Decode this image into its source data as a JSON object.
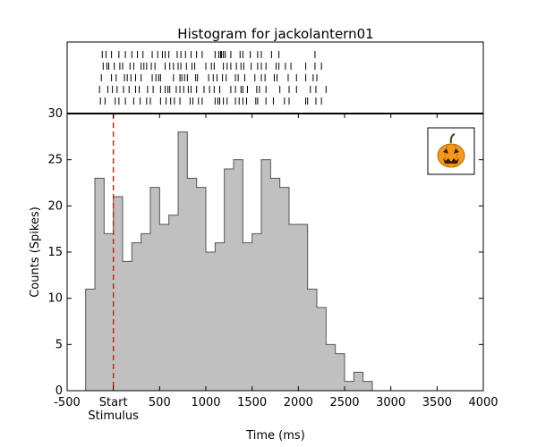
{
  "chart_data": {
    "type": "bar",
    "title": "Histogram for jackolantern01",
    "xlabel": "Time (ms)",
    "ylabel": "Counts (Spikes)",
    "xlim": [
      -500,
      4000
    ],
    "ylim": [
      0,
      30
    ],
    "x_ticks": [
      {
        "value": -500,
        "label": "-500"
      },
      {
        "value": 0,
        "label": "Start"
      },
      {
        "value": 500,
        "label": "500"
      },
      {
        "value": 1000,
        "label": "1000"
      },
      {
        "value": 1500,
        "label": "1500"
      },
      {
        "value": 2000,
        "label": "2000"
      },
      {
        "value": 2500,
        "label": "2500"
      },
      {
        "value": 3000,
        "label": "3000"
      },
      {
        "value": 3500,
        "label": "3500"
      },
      {
        "value": 4000,
        "label": "4000"
      }
    ],
    "y_ticks": [
      0,
      5,
      10,
      15,
      20,
      25,
      30
    ],
    "stimulus": {
      "x": 0,
      "label": "Stimulus",
      "color": "#e31a1c"
    },
    "bin_width": 100,
    "bins_start": [
      -300,
      -200,
      -100,
      0,
      100,
      200,
      300,
      400,
      500,
      600,
      700,
      800,
      900,
      1000,
      1100,
      1200,
      1300,
      1400,
      1500,
      1600,
      1700,
      1800,
      1900,
      2000,
      2100,
      2200,
      2300,
      2400,
      2500,
      2600,
      2700,
      2800,
      2900,
      3000,
      3100,
      3200,
      3300,
      3400,
      3500,
      3600,
      3700,
      3800,
      3900
    ],
    "values": [
      11,
      23,
      17,
      21,
      14,
      16,
      17,
      22,
      18,
      19,
      28,
      23,
      22,
      15,
      16,
      24,
      25,
      16,
      17,
      25,
      23,
      22,
      18,
      18,
      11,
      9,
      5,
      4,
      1,
      2,
      1,
      0,
      0,
      0,
      0,
      0,
      0,
      0,
      0,
      0,
      0,
      0,
      0
    ],
    "bar_color": "#c0c0c0",
    "edge_color": "#555555",
    "raster": {
      "trials": [
        [
          -120,
          -80,
          -20,
          60,
          130,
          200,
          260,
          320,
          420,
          480,
          530,
          560,
          600,
          690,
          730,
          780,
          840,
          900,
          960,
          1100,
          1140,
          1160,
          1170,
          1190,
          1210,
          1270,
          1370,
          1400,
          1480,
          1560,
          1600,
          1710,
          1790,
          2180
        ],
        [
          -110,
          -70,
          -50,
          10,
          70,
          100,
          180,
          220,
          300,
          330,
          360,
          410,
          450,
          560,
          610,
          650,
          700,
          730,
          790,
          850,
          880,
          1000,
          1060,
          1090,
          1190,
          1230,
          1270,
          1330,
          1380,
          1410,
          1490,
          1560,
          1600,
          1650,
          1760,
          1790,
          1860,
          1920,
          2080,
          2180,
          2250
        ],
        [
          -130,
          -20,
          30,
          120,
          150,
          190,
          240,
          300,
          420,
          460,
          490,
          510,
          650,
          720,
          740,
          770,
          800,
          890,
          910,
          1030,
          1080,
          1120,
          1180,
          1220,
          1320,
          1350,
          1420,
          1530,
          1600,
          1640,
          1740,
          1770,
          1890,
          1980,
          2080,
          2160,
          2200
        ],
        [
          -150,
          -60,
          -10,
          40,
          110,
          170,
          240,
          280,
          370,
          430,
          510,
          560,
          590,
          610,
          680,
          720,
          760,
          810,
          840,
          900,
          980,
          1040,
          1090,
          1150,
          1270,
          1320,
          1380,
          1400,
          1450,
          1550,
          1580,
          1650,
          1800,
          1900,
          1980,
          2130,
          2190,
          2300
        ],
        [
          -140,
          -90,
          20,
          60,
          130,
          220,
          290,
          360,
          400,
          510,
          570,
          620,
          660,
          720,
          830,
          860,
          920,
          960,
          1100,
          1130,
          1150,
          1190,
          1230,
          1320,
          1360,
          1400,
          1440,
          1540,
          1560,
          1650,
          1730,
          1850,
          1900,
          2080,
          2100,
          2190,
          2250
        ]
      ]
    },
    "icon": "jack-o-lantern-icon"
  }
}
